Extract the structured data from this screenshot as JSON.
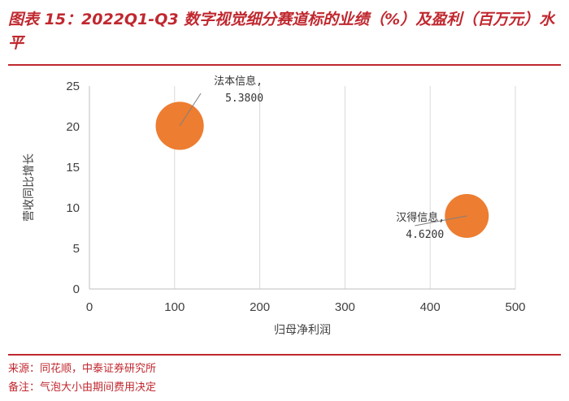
{
  "figure": {
    "title": "图表 15：2022Q1-Q3 数字视觉细分赛道标的业绩（%）及盈利（百万元）水平",
    "source": "来源：同花顺，中泰证券研究所",
    "note": "备注：气泡大小由期间费用决定"
  },
  "colors": {
    "accent": "#c0282f",
    "bubble": "#ed7d31",
    "grid": "#d9d9d9"
  },
  "chart_data": {
    "type": "scatter",
    "xlabel": "归母净利润",
    "ylabel": "营收同比增长",
    "xlim": [
      0,
      500
    ],
    "ylim": [
      0,
      25
    ],
    "xticks": [
      0,
      100,
      200,
      300,
      400,
      500
    ],
    "yticks": [
      0,
      5,
      10,
      15,
      20,
      25
    ],
    "grid": {
      "vertical": true,
      "horizontal": false
    },
    "points": [
      {
        "name": "法本信息",
        "value_label": "5.3800",
        "x": 106,
        "y": 20.1,
        "size": 5.38
      },
      {
        "name": "汉得信息",
        "value_label": "4.6200",
        "x": 443,
        "y": 9.0,
        "size": 4.62
      }
    ]
  }
}
